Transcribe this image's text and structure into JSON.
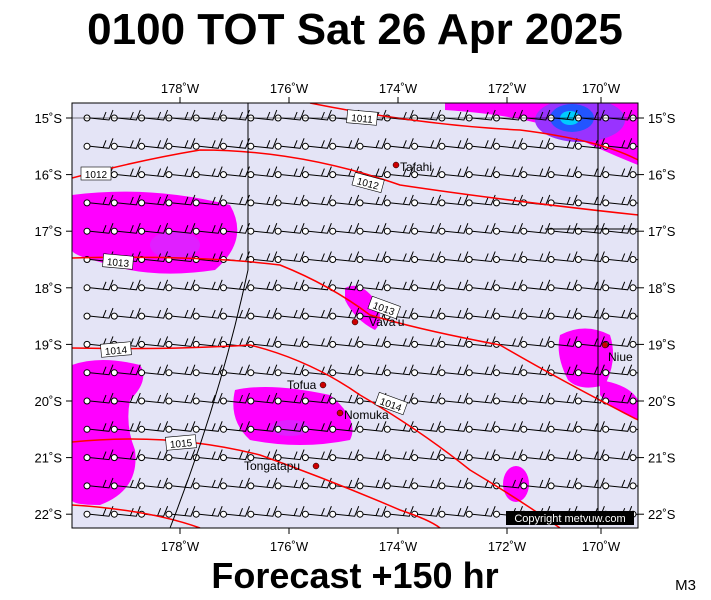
{
  "title": "0100 TOT Sat 26 Apr 2025",
  "longitude_labels": [
    "178˚W",
    "176˚W",
    "174˚W",
    "172˚W",
    "170˚W"
  ],
  "latitude_labels": [
    "15˚S",
    "16˚S",
    "17˚S",
    "18˚S",
    "19˚S",
    "20˚S",
    "21˚S",
    "22˚S"
  ],
  "isobar_labels": [
    "1011",
    "1012",
    "1012",
    "1013",
    "1013",
    "1014",
    "1014",
    "1015"
  ],
  "places": [
    "Tafahi",
    "Vava'u",
    "Niue",
    "Tofua",
    "Nomuka",
    "Tongatapu"
  ],
  "footer": "Forecast +150 hr",
  "copyright": "Copyright metvuw.com",
  "model": "M3"
}
